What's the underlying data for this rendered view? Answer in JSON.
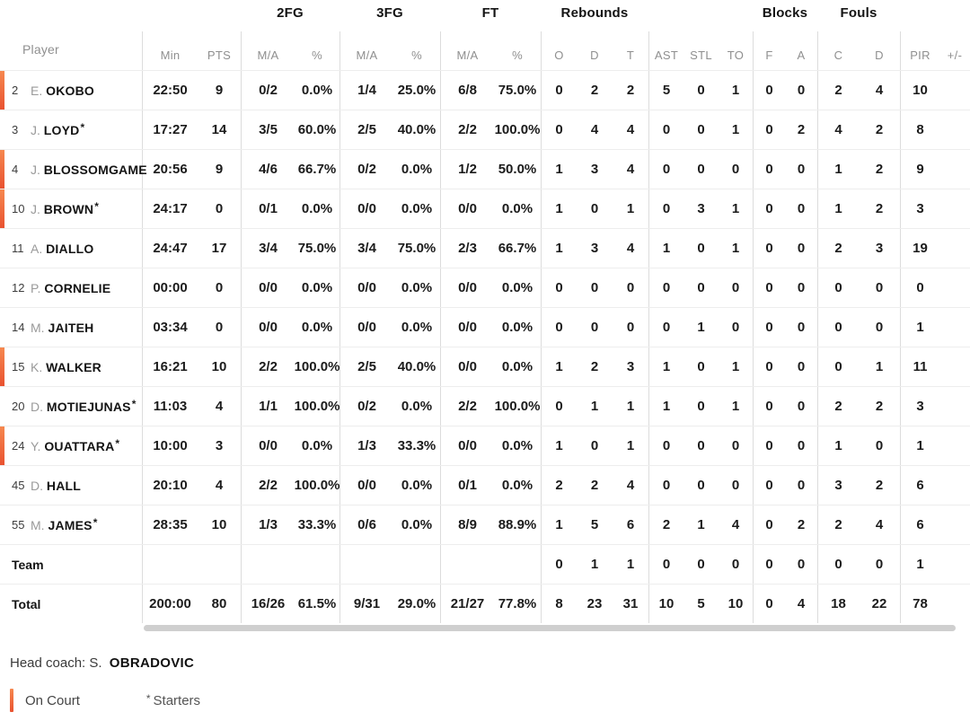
{
  "header": {
    "groups": {
      "fg2": "2FG",
      "fg3": "3FG",
      "ft": "FT",
      "rebounds": "Rebounds",
      "blocks": "Blocks",
      "fouls": "Fouls"
    },
    "cols": {
      "player": "Player",
      "min": "Min",
      "pts": "PTS",
      "ma": "M/A",
      "pct": "%",
      "o": "O",
      "d": "D",
      "t": "T",
      "ast": "AST",
      "stl": "STL",
      "to": "TO",
      "f": "F",
      "a": "A",
      "c": "C",
      "d2": "D",
      "pir": "PIR",
      "plus_minus": "+/-"
    }
  },
  "table": {
    "rows": [
      {
        "number": "2",
        "initial": "E.",
        "surname": "OKOBO",
        "starter": false,
        "on_court": true,
        "min": "22:50",
        "pts": "9",
        "fg2_ma": "0/2",
        "fg2_pct": "0.0%",
        "fg3_ma": "1/4",
        "fg3_pct": "25.0%",
        "ft_ma": "6/8",
        "ft_pct": "75.0%",
        "reb_o": "0",
        "reb_d": "2",
        "reb_t": "2",
        "ast": "5",
        "stl": "0",
        "to": "1",
        "blk_f": "0",
        "blk_a": "0",
        "foul_c": "2",
        "foul_d": "4",
        "pir": "10"
      },
      {
        "number": "3",
        "initial": "J.",
        "surname": "LOYD",
        "starter": true,
        "on_court": false,
        "min": "17:27",
        "pts": "14",
        "fg2_ma": "3/5",
        "fg2_pct": "60.0%",
        "fg3_ma": "2/5",
        "fg3_pct": "40.0%",
        "ft_ma": "2/2",
        "ft_pct": "100.0%",
        "reb_o": "0",
        "reb_d": "4",
        "reb_t": "4",
        "ast": "0",
        "stl": "0",
        "to": "1",
        "blk_f": "0",
        "blk_a": "2",
        "foul_c": "4",
        "foul_d": "2",
        "pir": "8"
      },
      {
        "number": "4",
        "initial": "J.",
        "surname": "BLOSSOMGAME",
        "starter": false,
        "on_court": true,
        "min": "20:56",
        "pts": "9",
        "fg2_ma": "4/6",
        "fg2_pct": "66.7%",
        "fg3_ma": "0/2",
        "fg3_pct": "0.0%",
        "ft_ma": "1/2",
        "ft_pct": "50.0%",
        "reb_o": "1",
        "reb_d": "3",
        "reb_t": "4",
        "ast": "0",
        "stl": "0",
        "to": "0",
        "blk_f": "0",
        "blk_a": "0",
        "foul_c": "1",
        "foul_d": "2",
        "pir": "9"
      },
      {
        "number": "10",
        "initial": "J.",
        "surname": "BROWN",
        "starter": true,
        "on_court": true,
        "min": "24:17",
        "pts": "0",
        "fg2_ma": "0/1",
        "fg2_pct": "0.0%",
        "fg3_ma": "0/0",
        "fg3_pct": "0.0%",
        "ft_ma": "0/0",
        "ft_pct": "0.0%",
        "reb_o": "1",
        "reb_d": "0",
        "reb_t": "1",
        "ast": "0",
        "stl": "3",
        "to": "1",
        "blk_f": "0",
        "blk_a": "0",
        "foul_c": "1",
        "foul_d": "2",
        "pir": "3"
      },
      {
        "number": "11",
        "initial": "A.",
        "surname": "DIALLO",
        "starter": false,
        "on_court": false,
        "min": "24:47",
        "pts": "17",
        "fg2_ma": "3/4",
        "fg2_pct": "75.0%",
        "fg3_ma": "3/4",
        "fg3_pct": "75.0%",
        "ft_ma": "2/3",
        "ft_pct": "66.7%",
        "reb_o": "1",
        "reb_d": "3",
        "reb_t": "4",
        "ast": "1",
        "stl": "0",
        "to": "1",
        "blk_f": "0",
        "blk_a": "0",
        "foul_c": "2",
        "foul_d": "3",
        "pir": "19"
      },
      {
        "number": "12",
        "initial": "P.",
        "surname": "CORNELIE",
        "starter": false,
        "on_court": false,
        "min": "00:00",
        "pts": "0",
        "fg2_ma": "0/0",
        "fg2_pct": "0.0%",
        "fg3_ma": "0/0",
        "fg3_pct": "0.0%",
        "ft_ma": "0/0",
        "ft_pct": "0.0%",
        "reb_o": "0",
        "reb_d": "0",
        "reb_t": "0",
        "ast": "0",
        "stl": "0",
        "to": "0",
        "blk_f": "0",
        "blk_a": "0",
        "foul_c": "0",
        "foul_d": "0",
        "pir": "0"
      },
      {
        "number": "14",
        "initial": "M.",
        "surname": "JAITEH",
        "starter": false,
        "on_court": false,
        "min": "03:34",
        "pts": "0",
        "fg2_ma": "0/0",
        "fg2_pct": "0.0%",
        "fg3_ma": "0/0",
        "fg3_pct": "0.0%",
        "ft_ma": "0/0",
        "ft_pct": "0.0%",
        "reb_o": "0",
        "reb_d": "0",
        "reb_t": "0",
        "ast": "0",
        "stl": "1",
        "to": "0",
        "blk_f": "0",
        "blk_a": "0",
        "foul_c": "0",
        "foul_d": "0",
        "pir": "1"
      },
      {
        "number": "15",
        "initial": "K.",
        "surname": "WALKER",
        "starter": false,
        "on_court": true,
        "min": "16:21",
        "pts": "10",
        "fg2_ma": "2/2",
        "fg2_pct": "100.0%",
        "fg3_ma": "2/5",
        "fg3_pct": "40.0%",
        "ft_ma": "0/0",
        "ft_pct": "0.0%",
        "reb_o": "1",
        "reb_d": "2",
        "reb_t": "3",
        "ast": "1",
        "stl": "0",
        "to": "1",
        "blk_f": "0",
        "blk_a": "0",
        "foul_c": "0",
        "foul_d": "1",
        "pir": "11"
      },
      {
        "number": "20",
        "initial": "D.",
        "surname": "MOTIEJUNAS",
        "starter": true,
        "on_court": false,
        "min": "11:03",
        "pts": "4",
        "fg2_ma": "1/1",
        "fg2_pct": "100.0%",
        "fg3_ma": "0/2",
        "fg3_pct": "0.0%",
        "ft_ma": "2/2",
        "ft_pct": "100.0%",
        "reb_o": "0",
        "reb_d": "1",
        "reb_t": "1",
        "ast": "1",
        "stl": "0",
        "to": "1",
        "blk_f": "0",
        "blk_a": "0",
        "foul_c": "2",
        "foul_d": "2",
        "pir": "3"
      },
      {
        "number": "24",
        "initial": "Y.",
        "surname": "OUATTARA",
        "starter": true,
        "on_court": true,
        "min": "10:00",
        "pts": "3",
        "fg2_ma": "0/0",
        "fg2_pct": "0.0%",
        "fg3_ma": "1/3",
        "fg3_pct": "33.3%",
        "ft_ma": "0/0",
        "ft_pct": "0.0%",
        "reb_o": "1",
        "reb_d": "0",
        "reb_t": "1",
        "ast": "0",
        "stl": "0",
        "to": "0",
        "blk_f": "0",
        "blk_a": "0",
        "foul_c": "1",
        "foul_d": "0",
        "pir": "1"
      },
      {
        "number": "45",
        "initial": "D.",
        "surname": "HALL",
        "starter": false,
        "on_court": false,
        "min": "20:10",
        "pts": "4",
        "fg2_ma": "2/2",
        "fg2_pct": "100.0%",
        "fg3_ma": "0/0",
        "fg3_pct": "0.0%",
        "ft_ma": "0/1",
        "ft_pct": "0.0%",
        "reb_o": "2",
        "reb_d": "2",
        "reb_t": "4",
        "ast": "0",
        "stl": "0",
        "to": "0",
        "blk_f": "0",
        "blk_a": "0",
        "foul_c": "3",
        "foul_d": "2",
        "pir": "6"
      },
      {
        "number": "55",
        "initial": "M.",
        "surname": "JAMES",
        "starter": true,
        "on_court": false,
        "min": "28:35",
        "pts": "10",
        "fg2_ma": "1/3",
        "fg2_pct": "33.3%",
        "fg3_ma": "0/6",
        "fg3_pct": "0.0%",
        "ft_ma": "8/9",
        "ft_pct": "88.9%",
        "reb_o": "1",
        "reb_d": "5",
        "reb_t": "6",
        "ast": "2",
        "stl": "1",
        "to": "4",
        "blk_f": "0",
        "blk_a": "2",
        "foul_c": "2",
        "foul_d": "4",
        "pir": "6"
      }
    ],
    "team_row": {
      "label": "Team",
      "reb_o": "0",
      "reb_d": "1",
      "reb_t": "1",
      "ast": "0",
      "stl": "0",
      "to": "0",
      "blk_f": "0",
      "blk_a": "0",
      "foul_c": "0",
      "foul_d": "0",
      "pir": "1"
    },
    "total_row": {
      "label": "Total",
      "min": "200:00",
      "pts": "80",
      "fg2_ma": "16/26",
      "fg2_pct": "61.5%",
      "fg3_ma": "9/31",
      "fg3_pct": "29.0%",
      "ft_ma": "21/27",
      "ft_pct": "77.8%",
      "reb_o": "8",
      "reb_d": "23",
      "reb_t": "31",
      "ast": "10",
      "stl": "5",
      "to": "10",
      "blk_f": "0",
      "blk_a": "4",
      "foul_c": "18",
      "foul_d": "22",
      "pir": "78"
    },
    "starter_mark": "*"
  },
  "footer": {
    "head_coach_label": "Head coach: S.",
    "head_coach_name": "OBRADOVIC",
    "legend_on_court": "On Court",
    "legend_starters_symbol": "*",
    "legend_starters": "Starters"
  },
  "colors": {
    "accent_gradient_top": "#f6884f",
    "accent_gradient_bottom": "#e95230",
    "scrollbar": "#cfcfcf"
  }
}
